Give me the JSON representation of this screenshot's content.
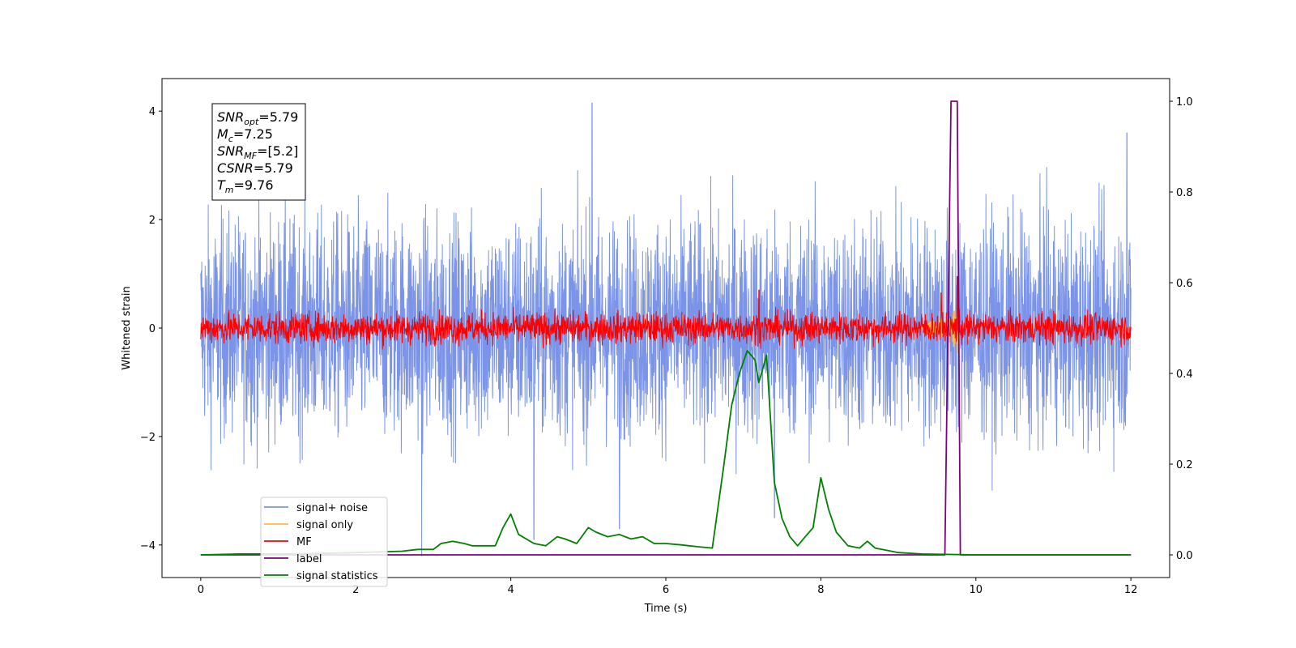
{
  "chart_data": {
    "type": "line",
    "xlabel": "Time (s)",
    "ylabel": "Whitened strain",
    "xlim": [
      -0.5,
      12.5
    ],
    "ylim": [
      -4.6,
      4.6
    ],
    "y2lim": [
      -0.05,
      1.05
    ],
    "x_ticks": [
      0,
      2,
      4,
      6,
      8,
      10,
      12
    ],
    "y_ticks": [
      -4,
      -2,
      0,
      2,
      4
    ],
    "y2_ticks": [
      0.0,
      0.2,
      0.4,
      0.6,
      0.8,
      1.0
    ],
    "x_tick_labels": [
      "0",
      "2",
      "4",
      "6",
      "8",
      "10",
      "12"
    ],
    "y_tick_labels": [
      "−4",
      "−2",
      "0",
      "2",
      "4"
    ],
    "y2_tick_labels": [
      "0.0",
      "0.2",
      "0.4",
      "0.6",
      "0.8",
      "1.0"
    ],
    "legend_placement": "lower-left",
    "annotation": [
      {
        "name": "SNR",
        "sub": "opt",
        "value": "=5.79"
      },
      {
        "name": "M",
        "sub": "c",
        "value": "=7.25"
      },
      {
        "name": "SNR",
        "sub": "MF",
        "value": "=[5.2]"
      },
      {
        "name": "CSNR",
        "sub": "",
        "value": "=5.79"
      },
      {
        "name": "T",
        "sub": "m",
        "value": "=9.76"
      }
    ],
    "series": [
      {
        "name": "signal+ noise",
        "color": "#7b94e8",
        "axis": "left",
        "style": "noise",
        "amplitude": 1.55,
        "extreme_peaks": [
          [
            5.05,
            4.15
          ],
          [
            2.85,
            -4.2
          ],
          [
            4.3,
            -3.9
          ],
          [
            5.4,
            -3.7
          ],
          [
            7.4,
            -3.5
          ],
          [
            11.95,
            3.6
          ]
        ]
      },
      {
        "name": "signal only",
        "color": "#ffb84d",
        "axis": "left",
        "style": "burst",
        "x": [
          9.3,
          9.45,
          9.55,
          9.65,
          9.72,
          9.76,
          9.8
        ],
        "y": [
          0.0,
          0.15,
          -0.2,
          0.3,
          -0.4,
          0.45,
          0.0
        ]
      },
      {
        "name": "MF",
        "color": "#ff0000",
        "axis": "left",
        "style": "noise",
        "amplitude": 0.22,
        "extreme_peaks": [
          [
            7.2,
            0.7
          ],
          [
            9.55,
            0.65
          ],
          [
            9.76,
            0.95
          ]
        ]
      },
      {
        "name": "label",
        "color": "#800080",
        "axis": "right",
        "x": [
          0,
          9.6,
          9.68,
          9.76,
          9.8,
          12
        ],
        "y": [
          0,
          0,
          1,
          1,
          0,
          0
        ]
      },
      {
        "name": "signal statistics",
        "color": "#008000",
        "axis": "right",
        "x": [
          0,
          0.5,
          1.0,
          1.5,
          2.0,
          2.4,
          2.6,
          2.8,
          3.0,
          3.1,
          3.25,
          3.4,
          3.5,
          3.6,
          3.8,
          3.9,
          4.0,
          4.1,
          4.3,
          4.45,
          4.6,
          4.7,
          4.85,
          5.0,
          5.1,
          5.25,
          5.4,
          5.55,
          5.7,
          5.85,
          6.0,
          6.2,
          6.4,
          6.6,
          6.75,
          6.85,
          6.95,
          7.05,
          7.15,
          7.2,
          7.3,
          7.4,
          7.5,
          7.6,
          7.7,
          7.8,
          7.9,
          8.0,
          8.1,
          8.2,
          8.35,
          8.5,
          8.6,
          8.7,
          8.85,
          9.0,
          9.3,
          9.6,
          10.0,
          12.0
        ],
        "y": [
          0.0,
          0.002,
          0.002,
          0.003,
          0.005,
          0.007,
          0.008,
          0.012,
          0.012,
          0.025,
          0.03,
          0.025,
          0.02,
          0.02,
          0.02,
          0.06,
          0.09,
          0.045,
          0.025,
          0.02,
          0.04,
          0.035,
          0.025,
          0.06,
          0.05,
          0.04,
          0.045,
          0.035,
          0.04,
          0.025,
          0.025,
          0.022,
          0.018,
          0.015,
          0.2,
          0.33,
          0.4,
          0.45,
          0.43,
          0.38,
          0.44,
          0.16,
          0.08,
          0.04,
          0.02,
          0.04,
          0.06,
          0.17,
          0.1,
          0.05,
          0.02,
          0.015,
          0.03,
          0.015,
          0.01,
          0.005,
          0.002,
          0.001,
          0.0,
          0.0
        ]
      }
    ],
    "legend": [
      "signal+ noise",
      "signal only",
      "MF",
      "label",
      "signal statistics"
    ]
  }
}
